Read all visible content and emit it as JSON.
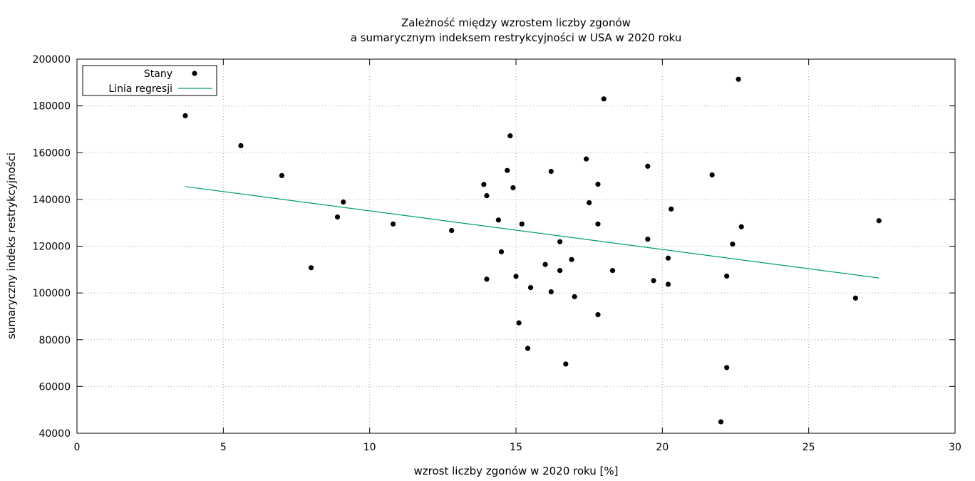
{
  "chart_data": {
    "type": "scatter",
    "title": [
      "Zależność między wzrostem liczby zgonów",
      "a sumarycznym indeksem restrykcyjności w USA w 2020 roku"
    ],
    "xlabel": "wzrost liczby zgonów w 2020 roku [%]",
    "ylabel": "sumaryczny indeks restrykcyjności",
    "xlim": [
      0,
      30
    ],
    "ylim": [
      40000,
      200000
    ],
    "xticks": [
      0,
      5,
      10,
      15,
      20,
      25,
      30
    ],
    "yticks": [
      40000,
      60000,
      80000,
      100000,
      120000,
      140000,
      160000,
      180000,
      200000
    ],
    "grid": true,
    "legend_position": "top-left",
    "colors": {
      "points": "#000000",
      "regression": "#009e73",
      "grid": "#aaaaaa"
    },
    "series": [
      {
        "name": "Stany",
        "kind": "points",
        "points": [
          [
            3.7,
            175800
          ],
          [
            5.6,
            163000
          ],
          [
            7.0,
            150200
          ],
          [
            8.0,
            110800
          ],
          [
            8.9,
            132500
          ],
          [
            9.1,
            138900
          ],
          [
            10.8,
            129500
          ],
          [
            12.8,
            126700
          ],
          [
            13.9,
            146400
          ],
          [
            14.0,
            141600
          ],
          [
            14.0,
            105900
          ],
          [
            14.4,
            131200
          ],
          [
            14.5,
            117600
          ],
          [
            14.7,
            152400
          ],
          [
            14.8,
            167200
          ],
          [
            14.9,
            145000
          ],
          [
            15.0,
            107100
          ],
          [
            15.1,
            87200
          ],
          [
            15.2,
            129500
          ],
          [
            15.4,
            76300
          ],
          [
            15.5,
            102300
          ],
          [
            16.0,
            112200
          ],
          [
            16.2,
            152000
          ],
          [
            16.2,
            100500
          ],
          [
            16.5,
            109600
          ],
          [
            16.5,
            121900
          ],
          [
            16.7,
            69600
          ],
          [
            16.9,
            114300
          ],
          [
            17.0,
            98400
          ],
          [
            17.4,
            157300
          ],
          [
            17.5,
            138600
          ],
          [
            17.8,
            146500
          ],
          [
            17.8,
            129500
          ],
          [
            17.8,
            90700
          ],
          [
            18.0,
            183000
          ],
          [
            18.3,
            109600
          ],
          [
            19.5,
            123000
          ],
          [
            19.5,
            154200
          ],
          [
            19.7,
            105300
          ],
          [
            20.2,
            114900
          ],
          [
            20.2,
            103700
          ],
          [
            20.3,
            135900
          ],
          [
            21.7,
            150500
          ],
          [
            22.0,
            44900
          ],
          [
            22.2,
            107200
          ],
          [
            22.2,
            68100
          ],
          [
            22.4,
            120900
          ],
          [
            22.6,
            191400
          ],
          [
            22.7,
            128300
          ],
          [
            26.6,
            97800
          ],
          [
            27.4,
            130900
          ]
        ]
      },
      {
        "name": "Linia regresji",
        "kind": "line",
        "points": [
          [
            3.7,
            145500
          ],
          [
            27.4,
            106400
          ]
        ]
      }
    ]
  }
}
